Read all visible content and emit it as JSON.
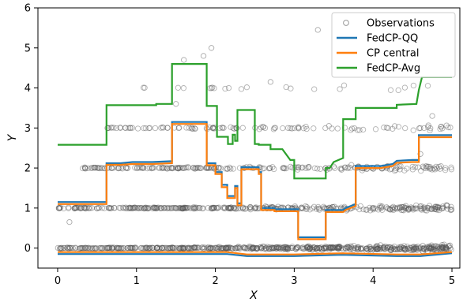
{
  "chart_data": {
    "type": "scatter",
    "title": "",
    "xlabel": "X",
    "ylabel": "Y",
    "xlim": [
      -0.25,
      5.1
    ],
    "ylim": [
      -0.5,
      6.0
    ],
    "x_ticks": [
      0,
      1,
      2,
      3,
      4,
      5
    ],
    "y_ticks": [
      0,
      1,
      2,
      3,
      4,
      5,
      6
    ],
    "x_tick_labels": [
      "0",
      "1",
      "2",
      "3",
      "4",
      "5"
    ],
    "y_tick_labels": [
      "0",
      "1",
      "2",
      "3",
      "4",
      "5",
      "6"
    ],
    "grid": false,
    "legend_position": "top-right",
    "colors": {
      "observations": "#555555",
      "fedcp_qq": "#1f77b4",
      "cp_central": "#ff7f0e",
      "fedcp_avg": "#2ca02c"
    },
    "scatter_series": {
      "name": "Observations",
      "levels": [
        {
          "y": 0,
          "x_range": [
            0,
            5
          ],
          "count": 600
        },
        {
          "y": 1,
          "x_range": [
            0,
            5
          ],
          "count": 380
        },
        {
          "y": 2,
          "x_range": [
            0.3,
            5
          ],
          "count": 230
        },
        {
          "y": 3,
          "x_range": [
            0.6,
            5
          ],
          "count": 110
        },
        {
          "y": 4,
          "x_range": [
            1.0,
            5
          ],
          "count": 22
        }
      ],
      "outliers": [
        [
          0.15,
          0.65
        ],
        [
          1.5,
          3.6
        ],
        [
          1.6,
          4.7
        ],
        [
          1.85,
          4.8
        ],
        [
          1.95,
          5.0
        ],
        [
          3.3,
          5.45
        ],
        [
          2.7,
          4.15
        ],
        [
          4.6,
          2.35
        ],
        [
          4.75,
          3.3
        ]
      ]
    },
    "series": [
      {
        "name": "FedCP-QQ",
        "color": "#1f77b4",
        "bands": [
          [
            [
              0,
              -0.15
            ],
            [
              2.15,
              -0.15
            ],
            [
              2.4,
              -0.2
            ],
            [
              3.0,
              -0.2
            ],
            [
              3.6,
              -0.17
            ],
            [
              4.3,
              -0.2
            ],
            [
              4.6,
              -0.2
            ],
            [
              5.0,
              -0.13
            ]
          ],
          [
            [
              0,
              1.15
            ],
            [
              0.62,
              1.15
            ],
            [
              0.62,
              2.12
            ],
            [
              0.8,
              2.12
            ],
            [
              0.95,
              2.15
            ],
            [
              1.2,
              2.15
            ],
            [
              1.45,
              2.17
            ],
            [
              1.45,
              3.15
            ],
            [
              1.89,
              3.15
            ],
            [
              1.89,
              2.12
            ],
            [
              2.0,
              2.12
            ],
            [
              2.0,
              1.9
            ],
            [
              2.08,
              1.9
            ],
            [
              2.08,
              1.58
            ],
            [
              2.15,
              1.58
            ],
            [
              2.15,
              1.3
            ],
            [
              2.25,
              1.3
            ],
            [
              2.25,
              1.55
            ],
            [
              2.28,
              1.55
            ],
            [
              2.28,
              1.12
            ],
            [
              2.33,
              1.12
            ],
            [
              2.33,
              2.02
            ],
            [
              2.55,
              2.02
            ],
            [
              2.55,
              1.9
            ],
            [
              2.58,
              1.9
            ],
            [
              2.58,
              1.0
            ],
            [
              2.75,
              1.0
            ],
            [
              2.75,
              0.97
            ],
            [
              3.05,
              0.97
            ],
            [
              3.05,
              0.27
            ],
            [
              3.4,
              0.27
            ],
            [
              3.4,
              0.95
            ],
            [
              3.62,
              0.95
            ],
            [
              3.65,
              1.0
            ],
            [
              3.78,
              1.1
            ],
            [
              3.78,
              2.05
            ],
            [
              4.1,
              2.05
            ],
            [
              4.25,
              2.1
            ],
            [
              4.3,
              2.18
            ],
            [
              4.5,
              2.2
            ],
            [
              4.58,
              2.2
            ],
            [
              4.58,
              2.82
            ],
            [
              5.0,
              2.82
            ]
          ]
        ]
      },
      {
        "name": "CP central",
        "color": "#ff7f0e",
        "bands": [
          [
            [
              0,
              -0.1
            ],
            [
              2.15,
              -0.1
            ],
            [
              2.4,
              -0.16
            ],
            [
              3.0,
              -0.16
            ],
            [
              3.6,
              -0.13
            ],
            [
              4.3,
              -0.16
            ],
            [
              4.6,
              -0.16
            ],
            [
              5.0,
              -0.1
            ]
          ],
          [
            [
              0,
              1.1
            ],
            [
              0.62,
              1.1
            ],
            [
              0.62,
              2.08
            ],
            [
              0.8,
              2.08
            ],
            [
              0.95,
              2.1
            ],
            [
              1.2,
              2.1
            ],
            [
              1.45,
              2.12
            ],
            [
              1.45,
              3.1
            ],
            [
              1.89,
              3.1
            ],
            [
              1.89,
              2.07
            ],
            [
              2.0,
              2.07
            ],
            [
              2.0,
              1.85
            ],
            [
              2.08,
              1.85
            ],
            [
              2.08,
              1.52
            ],
            [
              2.15,
              1.52
            ],
            [
              2.15,
              1.25
            ],
            [
              2.25,
              1.25
            ],
            [
              2.25,
              1.5
            ],
            [
              2.28,
              1.5
            ],
            [
              2.28,
              1.07
            ],
            [
              2.33,
              1.07
            ],
            [
              2.33,
              1.97
            ],
            [
              2.55,
              1.97
            ],
            [
              2.55,
              1.85
            ],
            [
              2.58,
              1.85
            ],
            [
              2.58,
              0.95
            ],
            [
              2.75,
              0.95
            ],
            [
              2.75,
              0.92
            ],
            [
              3.05,
              0.92
            ],
            [
              3.05,
              0.22
            ],
            [
              3.4,
              0.22
            ],
            [
              3.4,
              0.9
            ],
            [
              3.62,
              0.9
            ],
            [
              3.65,
              0.95
            ],
            [
              3.78,
              1.05
            ],
            [
              3.78,
              2.0
            ],
            [
              4.1,
              2.0
            ],
            [
              4.25,
              2.05
            ],
            [
              4.3,
              2.13
            ],
            [
              4.5,
              2.15
            ],
            [
              4.58,
              2.15
            ],
            [
              4.58,
              2.77
            ],
            [
              5.0,
              2.77
            ]
          ]
        ]
      },
      {
        "name": "FedCP-Avg",
        "color": "#2ca02c",
        "bands": [
          [
            [
              0,
              2.58
            ],
            [
              0.62,
              2.58
            ],
            [
              0.62,
              3.57
            ],
            [
              1.25,
              3.57
            ],
            [
              1.25,
              3.6
            ],
            [
              1.45,
              3.6
            ],
            [
              1.45,
              4.6
            ],
            [
              1.89,
              4.6
            ],
            [
              1.89,
              3.55
            ],
            [
              2.02,
              3.55
            ],
            [
              2.02,
              2.78
            ],
            [
              2.16,
              2.78
            ],
            [
              2.16,
              2.6
            ],
            [
              2.22,
              2.6
            ],
            [
              2.22,
              2.83
            ],
            [
              2.25,
              2.83
            ],
            [
              2.25,
              2.68
            ],
            [
              2.28,
              2.68
            ],
            [
              2.28,
              3.45
            ],
            [
              2.5,
              3.45
            ],
            [
              2.5,
              2.6
            ],
            [
              2.55,
              2.6
            ],
            [
              2.55,
              2.58
            ],
            [
              2.7,
              2.58
            ],
            [
              2.7,
              2.47
            ],
            [
              2.85,
              2.47
            ],
            [
              2.95,
              2.2
            ],
            [
              3.0,
              2.2
            ],
            [
              3.0,
              1.74
            ],
            [
              3.4,
              1.74
            ],
            [
              3.4,
              2.0
            ],
            [
              3.45,
              2.0
            ],
            [
              3.5,
              2.15
            ],
            [
              3.62,
              2.25
            ],
            [
              3.62,
              3.22
            ],
            [
              3.78,
              3.22
            ],
            [
              3.78,
              3.5
            ],
            [
              4.3,
              3.5
            ],
            [
              4.3,
              3.58
            ],
            [
              4.55,
              3.6
            ],
            [
              4.58,
              3.95
            ],
            [
              4.62,
              4.27
            ],
            [
              5.0,
              4.27
            ]
          ]
        ]
      }
    ],
    "legend": [
      {
        "label": "Observations",
        "kind": "marker",
        "color": "#555555"
      },
      {
        "label": "FedCP-QQ",
        "kind": "line",
        "color": "#1f77b4"
      },
      {
        "label": "CP central",
        "kind": "line",
        "color": "#ff7f0e"
      },
      {
        "label": "FedCP-Avg",
        "kind": "line",
        "color": "#2ca02c"
      }
    ]
  }
}
